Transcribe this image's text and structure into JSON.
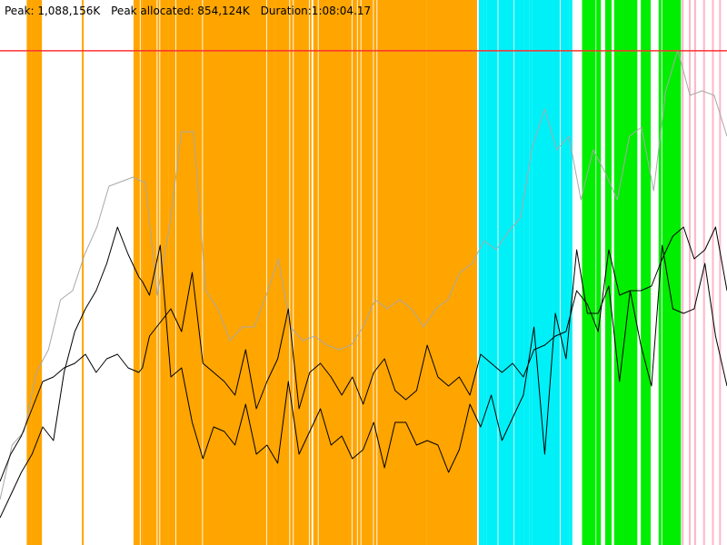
{
  "header": {
    "peak": "Peak: 1,088,156K",
    "peak_allocated": "Peak allocated: 854,124K",
    "duration": "Duration:1:08:04.17"
  },
  "chart_data": {
    "type": "line",
    "title": "",
    "xlabel": "",
    "ylabel": "",
    "x_range": [
      0,
      4084.17
    ],
    "x_unit": "seconds",
    "ylim": [
      0,
      1200000
    ],
    "y_unit": "K",
    "grid": false,
    "legend": "none",
    "threshold": {
      "value": 1088156,
      "color": "#ff3030"
    },
    "series": [
      {
        "color": "#a8a8a8",
        "x": [
          0,
          68,
          136,
          204,
          272,
          340,
          408,
          476,
          544,
          612,
          680,
          748,
          800,
          816,
          884,
          952,
          1020,
          1088,
          1156,
          1224,
          1292,
          1360,
          1428,
          1496,
          1564,
          1632,
          1700,
          1768,
          1836,
          1904,
          1972,
          2040,
          2108,
          2176,
          2244,
          2312,
          2380,
          2448,
          2516,
          2584,
          2652,
          2720,
          2788,
          2856,
          2924,
          2992,
          3060,
          3128,
          3196,
          3264,
          3332,
          3400,
          3468,
          3536,
          3604,
          3672,
          3740,
          3808,
          3876,
          3944,
          4012,
          4084
        ],
        "values": [
          100000,
          220000,
          250000,
          380000,
          430000,
          540000,
          560000,
          640000,
          700000,
          790000,
          800000,
          810000,
          800000,
          800000,
          550000,
          700000,
          910000,
          910000,
          560000,
          520000,
          450000,
          480000,
          480000,
          550000,
          630000,
          480000,
          450000,
          460000,
          440000,
          430000,
          440000,
          480000,
          540000,
          520000,
          540000,
          520000,
          480000,
          520000,
          540000,
          600000,
          620000,
          670000,
          650000,
          690000,
          720000,
          880000,
          960000,
          870000,
          900000,
          760000,
          870000,
          820000,
          760000,
          900000,
          920000,
          780000,
          1000000,
          1090000,
          990000,
          1000000,
          990000,
          900000
        ]
      },
      {
        "color": "#000000",
        "x": [
          0,
          60,
          120,
          180,
          240,
          300,
          360,
          420,
          480,
          540,
          600,
          660,
          720,
          780,
          800,
          840,
          900,
          960,
          1020,
          1080,
          1140,
          1200,
          1260,
          1320,
          1380,
          1440,
          1500,
          1560,
          1620,
          1680,
          1740,
          1800,
          1860,
          1920,
          1980,
          2040,
          2100,
          2160,
          2220,
          2280,
          2340,
          2400,
          2460,
          2520,
          2580,
          2640,
          2700,
          2760,
          2820,
          2880,
          2940,
          3000,
          3060,
          3120,
          3180,
          3240,
          3300,
          3360,
          3420,
          3480,
          3540,
          3600,
          3660,
          3720,
          3780,
          3840,
          3900,
          3960,
          4020,
          4084
        ],
        "values": [
          60000,
          110000,
          160000,
          200000,
          260000,
          230000,
          380000,
          470000,
          520000,
          560000,
          620000,
          700000,
          640000,
          590000,
          580000,
          550000,
          660000,
          370000,
          390000,
          270000,
          190000,
          260000,
          250000,
          220000,
          310000,
          200000,
          220000,
          180000,
          360000,
          200000,
          250000,
          300000,
          220000,
          240000,
          190000,
          210000,
          270000,
          170000,
          270000,
          270000,
          220000,
          230000,
          220000,
          160000,
          210000,
          310000,
          260000,
          330000,
          230000,
          280000,
          330000,
          480000,
          200000,
          510000,
          410000,
          650000,
          510000,
          510000,
          570000,
          360000,
          560000,
          440000,
          350000,
          660000,
          520000,
          510000,
          520000,
          620000,
          460000,
          350000
        ]
      },
      {
        "color": "#000000",
        "x": [
          0,
          60,
          120,
          180,
          240,
          300,
          360,
          420,
          480,
          540,
          600,
          660,
          720,
          780,
          800,
          840,
          900,
          960,
          1020,
          1080,
          1140,
          1200,
          1260,
          1320,
          1380,
          1440,
          1500,
          1560,
          1620,
          1680,
          1740,
          1800,
          1860,
          1920,
          1980,
          2040,
          2100,
          2160,
          2220,
          2280,
          2340,
          2400,
          2460,
          2520,
          2580,
          2640,
          2700,
          2760,
          2820,
          2880,
          2940,
          3000,
          3060,
          3120,
          3180,
          3240,
          3300,
          3360,
          3420,
          3480,
          3540,
          3600,
          3660,
          3720,
          3780,
          3840,
          3900,
          3960,
          4020,
          4084
        ],
        "values": [
          140000,
          200000,
          240000,
          300000,
          360000,
          370000,
          390000,
          400000,
          420000,
          380000,
          410000,
          420000,
          390000,
          380000,
          390000,
          460000,
          490000,
          520000,
          470000,
          600000,
          400000,
          380000,
          360000,
          330000,
          430000,
          300000,
          360000,
          410000,
          520000,
          300000,
          380000,
          400000,
          370000,
          330000,
          370000,
          310000,
          380000,
          410000,
          340000,
          320000,
          340000,
          440000,
          370000,
          350000,
          370000,
          330000,
          420000,
          400000,
          380000,
          400000,
          370000,
          430000,
          440000,
          460000,
          470000,
          560000,
          530000,
          470000,
          650000,
          550000,
          560000,
          560000,
          570000,
          630000,
          680000,
          700000,
          630000,
          650000,
          700000,
          560000
        ]
      }
    ],
    "events": [
      {
        "name": "orange",
        "color": "#ffa500",
        "x": [
          150,
          175,
          190,
          195,
          200,
          205,
          210,
          460,
          750,
          760,
          770,
          790,
          800,
          810,
          815,
          820,
          830,
          845,
          860,
          885,
          900,
          910,
          915,
          930,
          945,
          960,
          990,
          1000,
          1010,
          1020,
          1025,
          1030,
          1045,
          1055,
          1065,
          1080,
          1095,
          1105,
          1120,
          1140,
          1150,
          1165,
          1185,
          1200,
          1205,
          1215,
          1230,
          1245,
          1260,
          1280,
          1300,
          1320,
          1335,
          1350,
          1360,
          1375,
          1390,
          1405,
          1420,
          1440,
          1455,
          1470,
          1500,
          1520,
          1545,
          1565,
          1580,
          1595,
          1615,
          1630,
          1650,
          1670,
          1685,
          1700,
          1720,
          1740,
          1760,
          1790,
          1810,
          1830,
          1850,
          1870,
          1890,
          1910,
          1930,
          1945,
          1960,
          1980,
          2010,
          2030,
          2050,
          2070,
          2100,
          2120,
          2140,
          2160,
          2180,
          2190,
          2200,
          2215,
          2230,
          2250,
          2260,
          2275,
          2290,
          2310,
          2330,
          2345,
          2360,
          2380,
          2395,
          2410,
          2420,
          2430,
          2440,
          2455,
          2470,
          2480,
          2490,
          2500,
          2510,
          2520,
          2530,
          2540,
          2555,
          2570,
          2585,
          2600,
          2615,
          2630,
          2650,
          2670
        ],
        "w": [
          5,
          5,
          5,
          5,
          5,
          5,
          5,
          2,
          2,
          3,
          3,
          2,
          3,
          3,
          2,
          5,
          5,
          4,
          4,
          2,
          5,
          5,
          5,
          3,
          5,
          5,
          5,
          5,
          5,
          5,
          5,
          5,
          5,
          5,
          5,
          5,
          5,
          5,
          3,
          5,
          5,
          5,
          5,
          5,
          5,
          5,
          5,
          5,
          5,
          5,
          5,
          5,
          5,
          5,
          5,
          5,
          5,
          5,
          5,
          5,
          5,
          5,
          5,
          5,
          5,
          5,
          5,
          5,
          2,
          3,
          5,
          5,
          5,
          5,
          3,
          2,
          5,
          5,
          5,
          5,
          5,
          5,
          5,
          5,
          5,
          3,
          3,
          5,
          3,
          5,
          5,
          5,
          3,
          5,
          5,
          5,
          5,
          5,
          5,
          5,
          5,
          5,
          5,
          5,
          5,
          5,
          5,
          5,
          5,
          3,
          5,
          5,
          5,
          5,
          5,
          5,
          5,
          5,
          5,
          5,
          5,
          5,
          5,
          5,
          5,
          5,
          5,
          5,
          5,
          5,
          5,
          2,
          2
        ]
      },
      {
        "name": "cyan",
        "color": "#00f0f8",
        "x": [
          2690,
          2705,
          2720,
          2735,
          2750,
          2765,
          2780,
          2800,
          2810,
          2830,
          2840,
          2850,
          2860,
          2870,
          2890,
          2900,
          2915,
          2930,
          2945,
          2960,
          2975,
          2990,
          3010,
          3020,
          3035,
          3050,
          3060,
          3075,
          3085,
          3100,
          3115,
          3130,
          3150,
          3170,
          3185,
          3200
        ],
        "w": [
          3,
          3,
          3,
          5,
          5,
          5,
          3,
          5,
          5,
          5,
          5,
          5,
          5,
          3,
          5,
          5,
          5,
          3,
          5,
          3,
          3,
          5,
          5,
          3,
          5,
          5,
          3,
          5,
          3,
          5,
          5,
          3,
          5,
          5,
          3,
          3
        ]
      },
      {
        "name": "green",
        "color": "#00ee00",
        "x": [
          3270,
          3280,
          3290,
          3300,
          3310,
          3320,
          3330,
          3350,
          3400,
          3410,
          3420,
          3450,
          3460,
          3480,
          3505,
          3520,
          3530,
          3540,
          3555,
          3600,
          3620,
          3630,
          3640,
          3700,
          3720,
          3730,
          3745,
          3760,
          3775,
          3790,
          3810
        ],
        "w": [
          5,
          5,
          5,
          3,
          5,
          5,
          3,
          5,
          5,
          5,
          3,
          5,
          5,
          5,
          5,
          5,
          5,
          5,
          5,
          5,
          5,
          5,
          3,
          3,
          5,
          5,
          3,
          5,
          5,
          5,
          3
        ]
      },
      {
        "name": "pink",
        "color": "#ffb6c8",
        "x": [
          3830,
          3870,
          3900,
          3950,
          4000,
          4040
        ],
        "w": [
          2,
          2,
          2,
          2,
          2,
          2
        ]
      }
    ]
  }
}
